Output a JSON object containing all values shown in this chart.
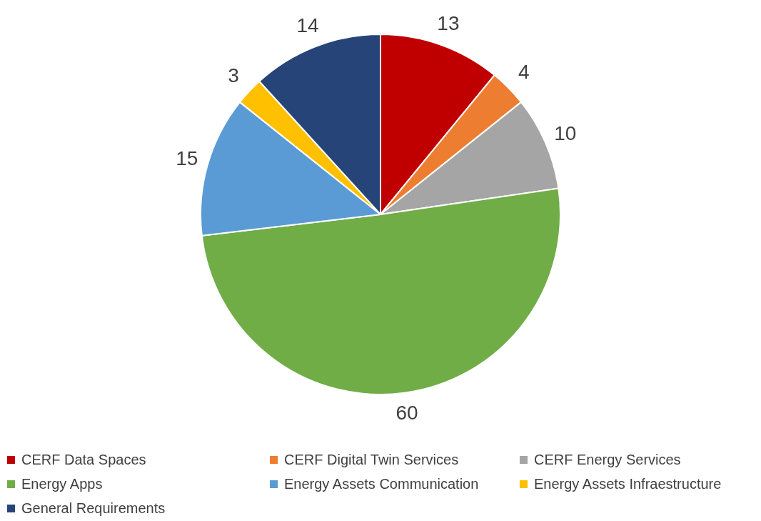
{
  "chart_data": {
    "type": "pie",
    "categories": [
      "CERF Data Spaces",
      "CERF Digital Twin Services",
      "CERF Energy Services",
      "Energy Apps",
      "Energy Assets Communication",
      "Energy Assets Infraestructure",
      "General Requirements"
    ],
    "values": [
      13,
      4,
      10,
      60,
      15,
      3,
      14
    ],
    "colors": [
      "#c00000",
      "#ed7d31",
      "#a5a5a5",
      "#70ad47",
      "#5b9bd5",
      "#ffc000",
      "#264478"
    ],
    "data_labels": true,
    "legend": "bottom"
  }
}
